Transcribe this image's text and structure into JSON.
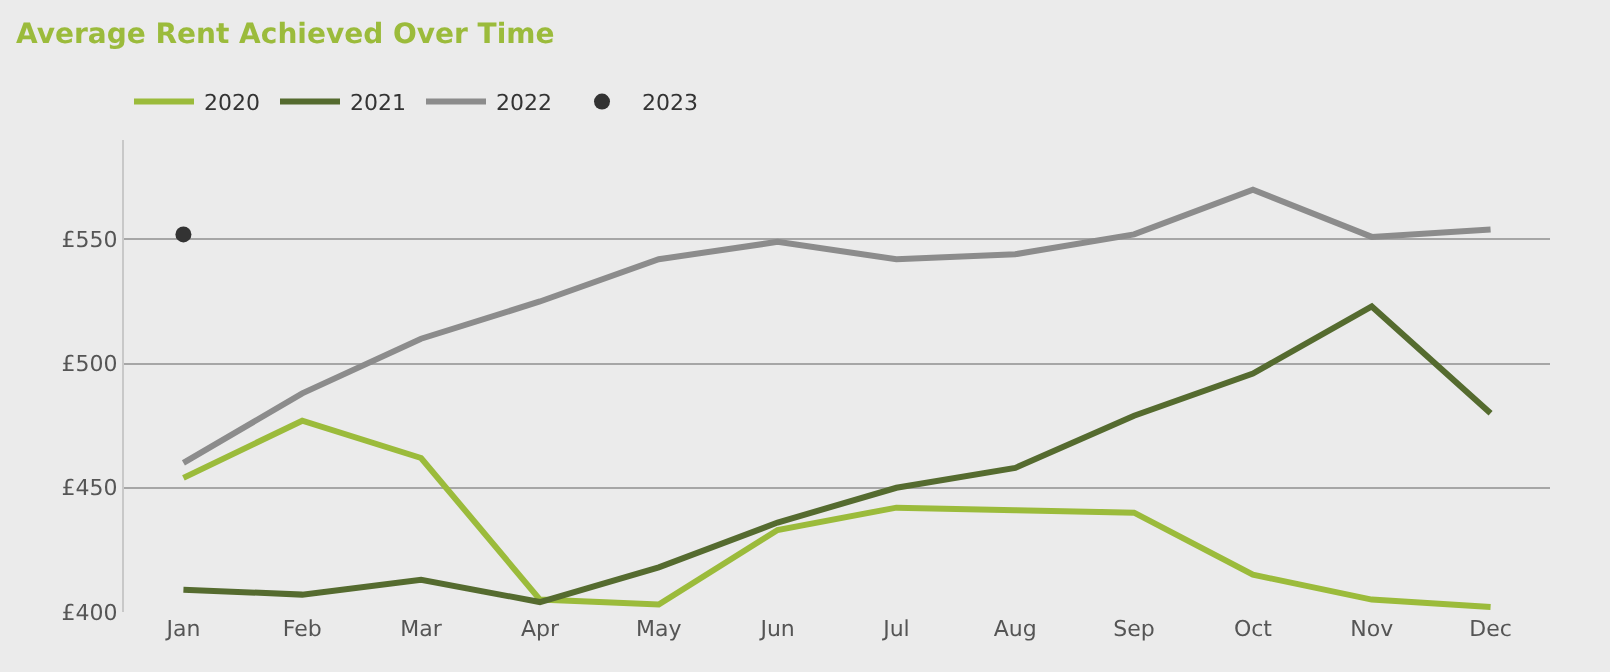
{
  "chart_data": {
    "type": "line",
    "title": "Average Rent Achieved Over Time",
    "categories": [
      "Jan",
      "Feb",
      "Mar",
      "Apr",
      "May",
      "Jun",
      "Jul",
      "Aug",
      "Sep",
      "Oct",
      "Nov",
      "Dec"
    ],
    "series": [
      {
        "name": "2020",
        "color": "#9bbb3b",
        "values": [
          454,
          477,
          462,
          405,
          403,
          433,
          442,
          441,
          440,
          415,
          405,
          402
        ]
      },
      {
        "name": "2021",
        "color": "#556b2f",
        "values": [
          409,
          407,
          413,
          404,
          418,
          436,
          450,
          458,
          479,
          496,
          523,
          480
        ]
      },
      {
        "name": "2022",
        "color": "#8c8c8c",
        "values": [
          460,
          488,
          510,
          525,
          542,
          549,
          542,
          544,
          552,
          570,
          551,
          554
        ]
      },
      {
        "name": "2023",
        "color": "#333333",
        "type": "scatter",
        "marker": "circle",
        "values": [
          552,
          null,
          null,
          null,
          null,
          null,
          null,
          null,
          null,
          null,
          null,
          null
        ]
      }
    ],
    "ylim": [
      400,
      590
    ],
    "yticks": [
      {
        "value": 400,
        "label": "£400"
      },
      {
        "value": 450,
        "label": "£450"
      },
      {
        "value": 500,
        "label": "£500"
      },
      {
        "value": 550,
        "label": "£550"
      }
    ],
    "grid": "y",
    "legend": "top left",
    "marker": "none",
    "line_style": "solid"
  }
}
